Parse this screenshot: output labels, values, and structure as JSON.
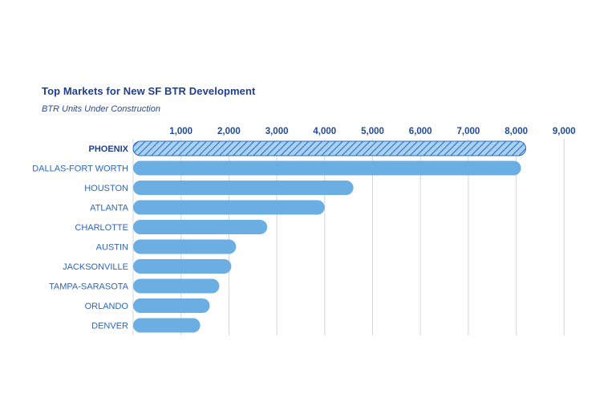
{
  "chart_data": {
    "type": "bar",
    "orientation": "horizontal",
    "title": "Top Markets for New SF BTR Development",
    "subtitle": "BTR Units Under Construction",
    "xlabel": "",
    "ylabel": "",
    "xlim": [
      0,
      9000
    ],
    "x_ticks": [
      "1,000",
      "2,000",
      "3,000",
      "4,000",
      "5,000",
      "6,000",
      "7,000",
      "8,000",
      "9,000"
    ],
    "tick_position": "top",
    "grid": true,
    "legend": "none",
    "highlighted_category": "PHOENIX",
    "categories": [
      "PHOENIX",
      "DALLAS-FORT WORTH",
      "HOUSTON",
      "ATLANTA",
      "CHARLOTTE",
      "AUSTIN",
      "JACKSONVILLE",
      "TAMPA-SARASOTA",
      "ORLANDO",
      "DENVER"
    ],
    "values": [
      8200,
      8100,
      4600,
      4000,
      2800,
      2150,
      2050,
      1800,
      1600,
      1400
    ],
    "colors": {
      "bar": "#6aaee4",
      "hatch": "#2f6cc0",
      "highlight_bg": "#a9d2f2",
      "grid": "#d6d6d6",
      "text": "#1f3f8f"
    }
  }
}
